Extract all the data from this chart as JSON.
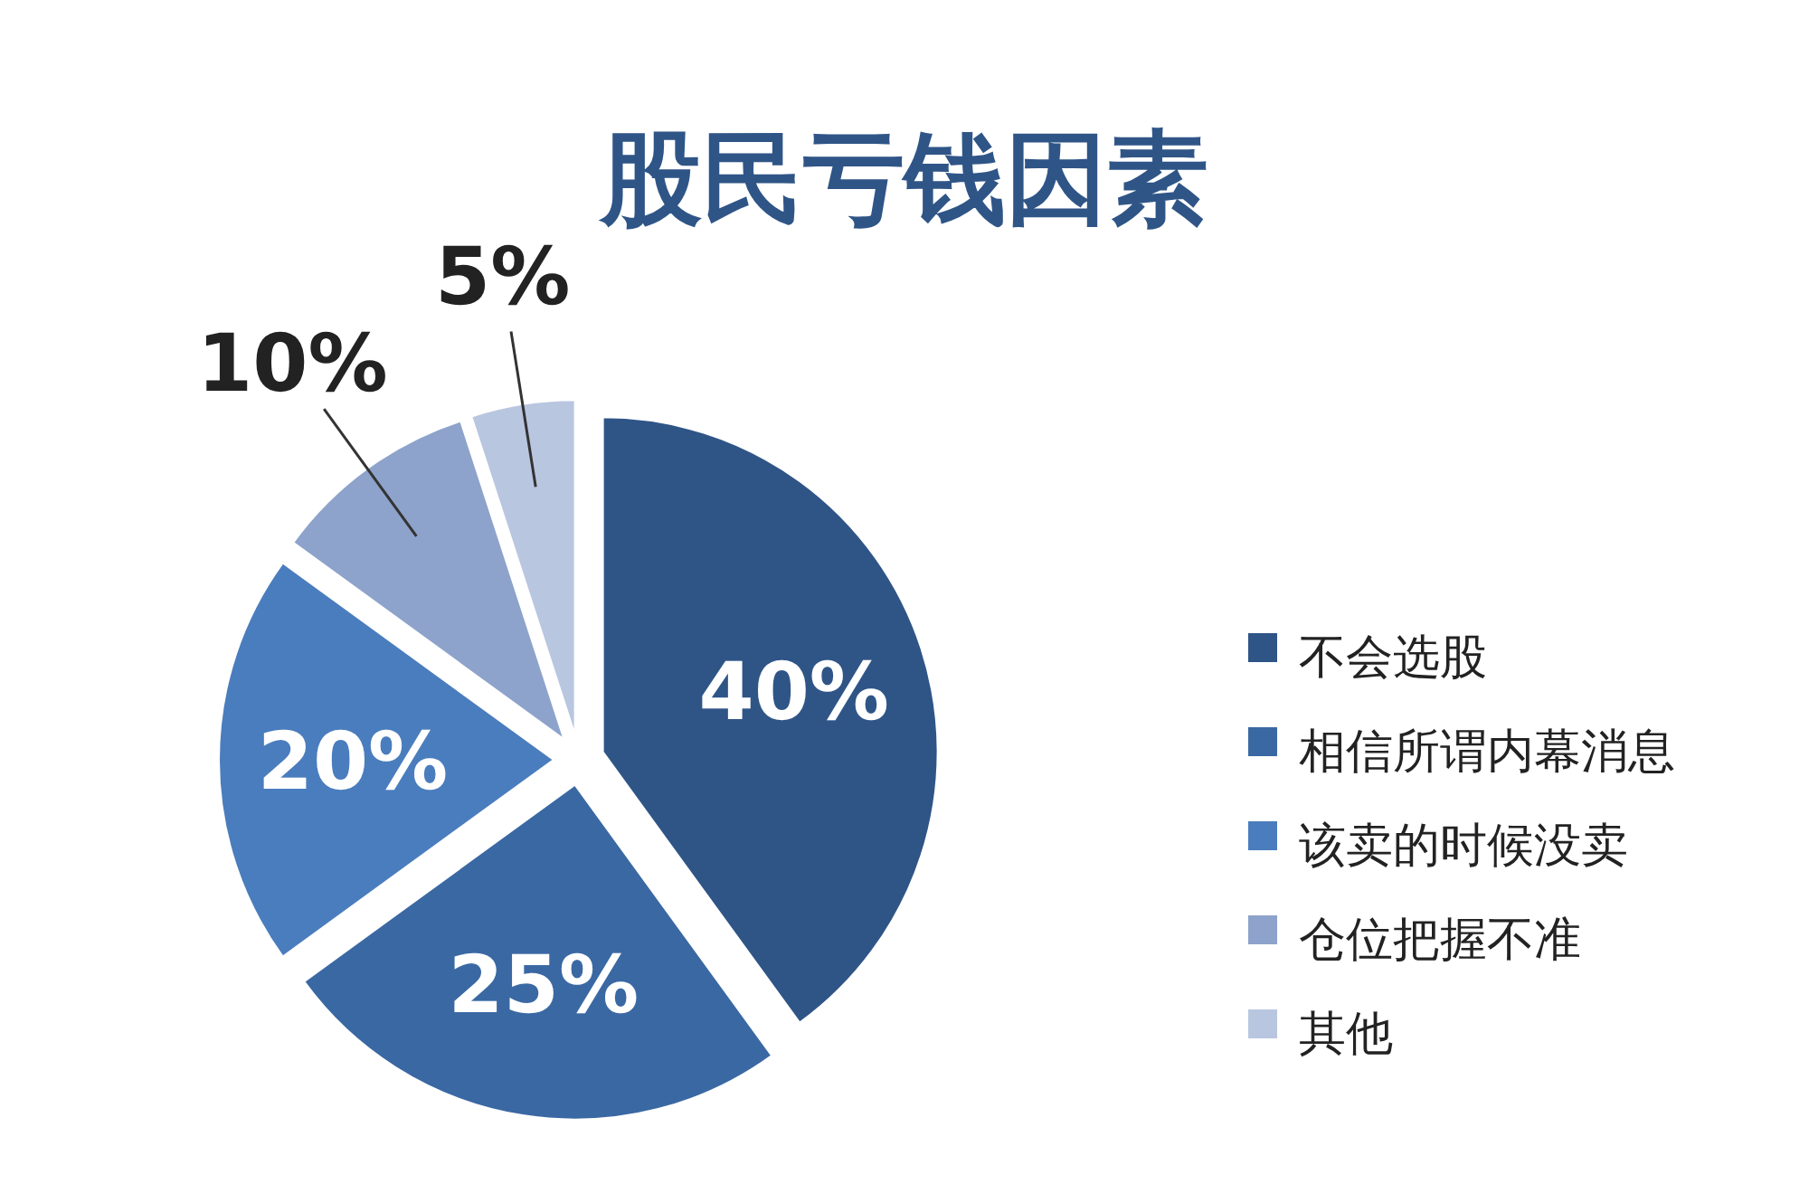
{
  "chart_data": {
    "type": "pie",
    "title": "股民亏钱因素",
    "categories": [
      "不会选股",
      "相信所谓内幕消息",
      "该卖的时候没卖",
      "仓位把握不准",
      "其他"
    ],
    "values": [
      40,
      25,
      20,
      10,
      5
    ],
    "colors": [
      "#2f5587",
      "#3a68a3",
      "#4a7dbd",
      "#8da3cb",
      "#b9c6e0"
    ],
    "value_labels": [
      "40%",
      "25%",
      "20%",
      "10%",
      "5%"
    ],
    "legend": "right"
  }
}
